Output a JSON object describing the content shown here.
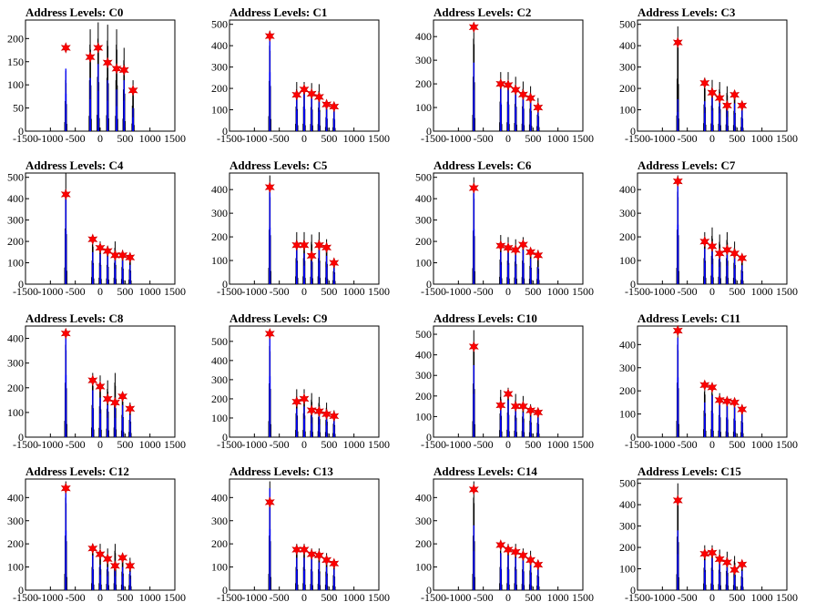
{
  "axis": {
    "x_ticks": [
      -1500,
      -1000,
      -500,
      0,
      500,
      1000,
      1500
    ],
    "xlim": [
      -1500,
      1500
    ]
  },
  "colors": {
    "histogram": "#000000",
    "overlay": "#0000ff",
    "marker": "#ff0000"
  },
  "chart_data": [
    {
      "type": "bar",
      "title": "Address Levels: C0",
      "ylim": [
        0,
        240
      ],
      "y_ticks": [
        0,
        50,
        100,
        150,
        200
      ],
      "peak_x": [
        -690,
        -200,
        -40,
        150,
        330,
        480,
        660
      ],
      "black_heights": [
        130,
        220,
        235,
        230,
        220,
        180,
        110
      ],
      "blue_heights": [
        135,
        115,
        145,
        110,
        90,
        110,
        50
      ],
      "markers_y": [
        180,
        160,
        180,
        148,
        135,
        132,
        88
      ]
    },
    {
      "type": "bar",
      "title": "Address Levels: C1",
      "ylim": [
        0,
        520
      ],
      "y_ticks": [
        0,
        100,
        200,
        300,
        400,
        500
      ],
      "peak_x": [
        -690,
        -150,
        0,
        150,
        300,
        450,
        600
      ],
      "black_heights": [
        470,
        230,
        230,
        225,
        220,
        130,
        120
      ],
      "blue_heights": [
        460,
        160,
        190,
        165,
        150,
        110,
        100
      ],
      "markers_y": [
        445,
        170,
        195,
        175,
        160,
        125,
        115
      ]
    },
    {
      "type": "bar",
      "title": "Address Levels: C2",
      "ylim": [
        0,
        470
      ],
      "y_ticks": [
        0,
        100,
        200,
        300,
        400
      ],
      "peak_x": [
        -690,
        -150,
        0,
        150,
        300,
        450,
        600
      ],
      "black_heights": [
        460,
        250,
        250,
        230,
        210,
        190,
        140
      ],
      "blue_heights": [
        290,
        200,
        190,
        170,
        160,
        130,
        100
      ],
      "markers_y": [
        440,
        200,
        195,
        175,
        155,
        140,
        100
      ]
    },
    {
      "type": "bar",
      "title": "Address Levels: C3",
      "ylim": [
        0,
        520
      ],
      "y_ticks": [
        0,
        100,
        200,
        300,
        400,
        500
      ],
      "peak_x": [
        -690,
        -150,
        0,
        150,
        300,
        450,
        600
      ],
      "black_heights": [
        490,
        250,
        240,
        230,
        210,
        190,
        130
      ],
      "blue_heights": [
        150,
        140,
        160,
        140,
        110,
        130,
        100
      ],
      "markers_y": [
        415,
        225,
        180,
        155,
        120,
        170,
        120
      ]
    },
    {
      "type": "bar",
      "title": "Address Levels: C4",
      "ylim": [
        0,
        520
      ],
      "y_ticks": [
        0,
        100,
        200,
        300,
        400,
        500
      ],
      "peak_x": [
        -690,
        -150,
        0,
        150,
        300,
        450,
        600
      ],
      "black_heights": [
        520,
        220,
        200,
        180,
        200,
        160,
        140
      ],
      "blue_heights": [
        420,
        150,
        140,
        130,
        120,
        110,
        90
      ],
      "markers_y": [
        420,
        210,
        170,
        155,
        135,
        135,
        125
      ]
    },
    {
      "type": "bar",
      "title": "Address Levels: C5",
      "ylim": [
        0,
        470
      ],
      "y_ticks": [
        0,
        100,
        200,
        300,
        400
      ],
      "peak_x": [
        -690,
        -150,
        0,
        150,
        300,
        450,
        600
      ],
      "black_heights": [
        460,
        220,
        220,
        210,
        220,
        190,
        110
      ],
      "blue_heights": [
        400,
        150,
        130,
        100,
        150,
        120,
        70
      ],
      "markers_y": [
        410,
        165,
        165,
        120,
        165,
        155,
        90
      ]
    },
    {
      "type": "bar",
      "title": "Address Levels: C6",
      "ylim": [
        0,
        520
      ],
      "y_ticks": [
        0,
        100,
        200,
        300,
        400,
        500
      ],
      "peak_x": [
        -690,
        -150,
        0,
        150,
        300,
        450,
        600
      ],
      "black_heights": [
        500,
        230,
        220,
        210,
        220,
        170,
        160
      ],
      "blue_heights": [
        430,
        150,
        150,
        140,
        160,
        120,
        80
      ],
      "markers_y": [
        450,
        180,
        170,
        160,
        185,
        150,
        135
      ]
    },
    {
      "type": "bar",
      "title": "Address Levels: C7",
      "ylim": [
        0,
        470
      ],
      "y_ticks": [
        0,
        100,
        200,
        300,
        400
      ],
      "peak_x": [
        -690,
        -150,
        0,
        150,
        300,
        450,
        600
      ],
      "black_heights": [
        460,
        220,
        240,
        210,
        220,
        180,
        120
      ],
      "blue_heights": [
        420,
        150,
        140,
        120,
        130,
        110,
        80
      ],
      "markers_y": [
        435,
        180,
        160,
        130,
        145,
        130,
        110
      ]
    },
    {
      "type": "bar",
      "title": "Address Levels: C8",
      "ylim": [
        0,
        450
      ],
      "y_ticks": [
        0,
        100,
        200,
        300,
        400
      ],
      "peak_x": [
        -690,
        -150,
        0,
        150,
        300,
        450,
        600
      ],
      "black_heights": [
        440,
        260,
        250,
        230,
        260,
        180,
        140
      ],
      "blue_heights": [
        420,
        190,
        160,
        130,
        130,
        130,
        90
      ],
      "markers_y": [
        420,
        230,
        205,
        155,
        140,
        165,
        115
      ]
    },
    {
      "type": "bar",
      "title": "Address Levels: C9",
      "ylim": [
        0,
        580
      ],
      "y_ticks": [
        0,
        100,
        200,
        300,
        400,
        500
      ],
      "peak_x": [
        -690,
        -150,
        0,
        150,
        300,
        450,
        600
      ],
      "black_heights": [
        560,
        250,
        250,
        230,
        210,
        180,
        140
      ],
      "blue_heights": [
        530,
        150,
        160,
        120,
        110,
        100,
        90
      ],
      "markers_y": [
        540,
        185,
        200,
        140,
        135,
        120,
        110
      ]
    },
    {
      "type": "bar",
      "title": "Address Levels: C10",
      "ylim": [
        0,
        540
      ],
      "y_ticks": [
        0,
        100,
        200,
        300,
        400,
        500
      ],
      "peak_x": [
        -690,
        -150,
        0,
        150,
        300,
        450,
        600
      ],
      "black_heights": [
        520,
        230,
        240,
        210,
        200,
        160,
        140
      ],
      "blue_heights": [
        350,
        140,
        180,
        130,
        120,
        100,
        100
      ],
      "markers_y": [
        440,
        155,
        210,
        150,
        150,
        130,
        120
      ]
    },
    {
      "type": "bar",
      "title": "Address Levels: C11",
      "ylim": [
        0,
        480
      ],
      "y_ticks": [
        0,
        100,
        200,
        300,
        400
      ],
      "peak_x": [
        -690,
        -150,
        0,
        150,
        300,
        450,
        600
      ],
      "black_heights": [
        470,
        230,
        230,
        190,
        170,
        160,
        140
      ],
      "blue_heights": [
        430,
        150,
        180,
        150,
        140,
        130,
        100
      ],
      "markers_y": [
        460,
        225,
        215,
        160,
        155,
        150,
        120
      ]
    },
    {
      "type": "bar",
      "title": "Address Levels: C12",
      "ylim": [
        0,
        480
      ],
      "y_ticks": [
        0,
        100,
        200,
        300,
        400
      ],
      "peak_x": [
        -690,
        -150,
        0,
        150,
        300,
        450,
        600
      ],
      "black_heights": [
        470,
        200,
        200,
        180,
        200,
        160,
        140
      ],
      "blue_heights": [
        430,
        150,
        110,
        100,
        100,
        100,
        80
      ],
      "markers_y": [
        440,
        180,
        155,
        135,
        105,
        140,
        105
      ]
    },
    {
      "type": "bar",
      "title": "Address Levels: C13",
      "ylim": [
        0,
        480
      ],
      "y_ticks": [
        0,
        100,
        200,
        300,
        400
      ],
      "peak_x": [
        -690,
        -150,
        0,
        150,
        300,
        450,
        600
      ],
      "black_heights": [
        470,
        200,
        200,
        180,
        180,
        160,
        130
      ],
      "blue_heights": [
        440,
        140,
        140,
        140,
        120,
        100,
        90
      ],
      "markers_y": [
        380,
        175,
        175,
        155,
        150,
        130,
        115
      ]
    },
    {
      "type": "bar",
      "title": "Address Levels: C14",
      "ylim": [
        0,
        480
      ],
      "y_ticks": [
        0,
        100,
        200,
        300,
        400
      ],
      "peak_x": [
        -690,
        -150,
        0,
        150,
        300,
        450,
        600
      ],
      "black_heights": [
        470,
        200,
        200,
        200,
        180,
        170,
        130
      ],
      "blue_heights": [
        280,
        160,
        150,
        140,
        130,
        110,
        90
      ],
      "markers_y": [
        435,
        195,
        175,
        165,
        150,
        130,
        110
      ]
    },
    {
      "type": "bar",
      "title": "Address Levels: C15",
      "ylim": [
        0,
        520
      ],
      "y_ticks": [
        0,
        100,
        200,
        300,
        400,
        500
      ],
      "peak_x": [
        -690,
        -150,
        0,
        150,
        300,
        450,
        600
      ],
      "black_heights": [
        500,
        210,
        210,
        190,
        180,
        160,
        130
      ],
      "blue_heights": [
        280,
        140,
        150,
        130,
        110,
        100,
        90
      ],
      "markers_y": [
        420,
        170,
        175,
        145,
        130,
        95,
        120
      ]
    }
  ]
}
